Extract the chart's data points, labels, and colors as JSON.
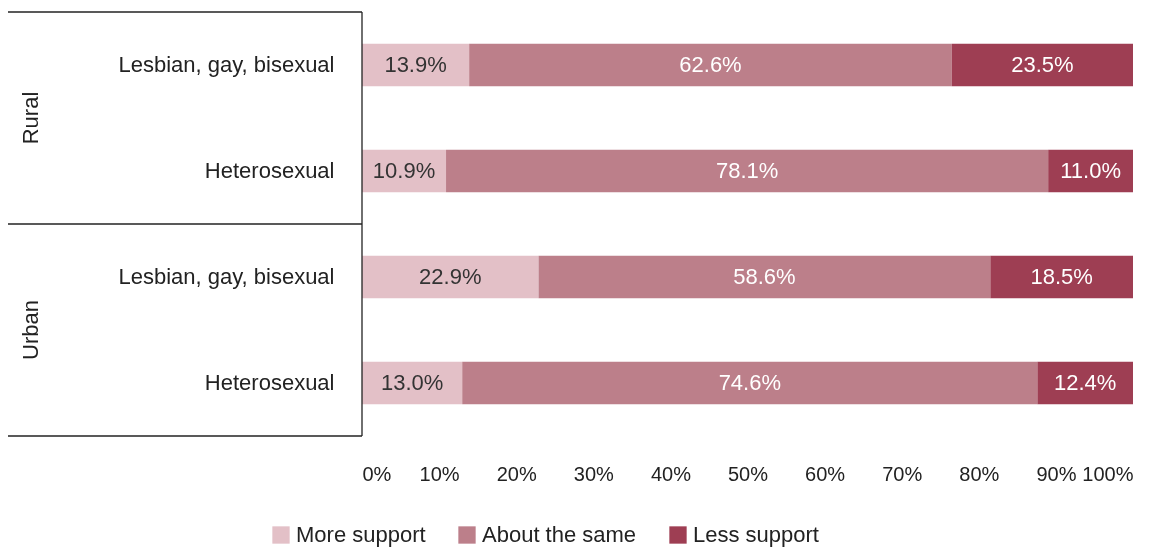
{
  "chart_data": {
    "type": "bar",
    "orientation": "horizontal",
    "stacked": true,
    "categories": [
      "Lesbian, gay, bisexual",
      "Heterosexual",
      "Lesbian, gay, bisexual",
      "Heterosexual"
    ],
    "series": [
      {
        "name": "More support",
        "color": "#e3c0c7",
        "values": [
          13.9,
          10.9,
          22.9,
          13.0
        ],
        "value_labels": [
          "13.9%",
          "10.9%",
          "22.9%",
          "13.0%"
        ]
      },
      {
        "name": "About the same",
        "color": "#bc7f8a",
        "values": [
          62.6,
          78.1,
          58.6,
          74.6
        ],
        "value_labels": [
          "62.6%",
          "78.1%",
          "58.6%",
          "74.6%"
        ]
      },
      {
        "name": "Less support",
        "color": "#9e3e53",
        "values": [
          23.5,
          11.0,
          18.5,
          12.4
        ],
        "value_labels": [
          "23.5%",
          "11.0%",
          "18.5%",
          "12.4%"
        ]
      }
    ],
    "xlim": [
      0,
      100
    ],
    "xticks": [
      {
        "value": 0,
        "label": "0%"
      },
      {
        "value": 10,
        "label": "10%"
      },
      {
        "value": 20,
        "label": "20%"
      },
      {
        "value": 30,
        "label": "30%"
      },
      {
        "value": 40,
        "label": "40%"
      },
      {
        "value": 50,
        "label": "50%"
      },
      {
        "value": 60,
        "label": "60%"
      },
      {
        "value": 70,
        "label": "70%"
      },
      {
        "value": 80,
        "label": "80%"
      },
      {
        "value": 90,
        "label": "90%"
      },
      {
        "value": 100,
        "label": "100%"
      }
    ],
    "annotations": [
      "Rural",
      "Urban"
    ],
    "grid": false,
    "legend": "bottom"
  }
}
